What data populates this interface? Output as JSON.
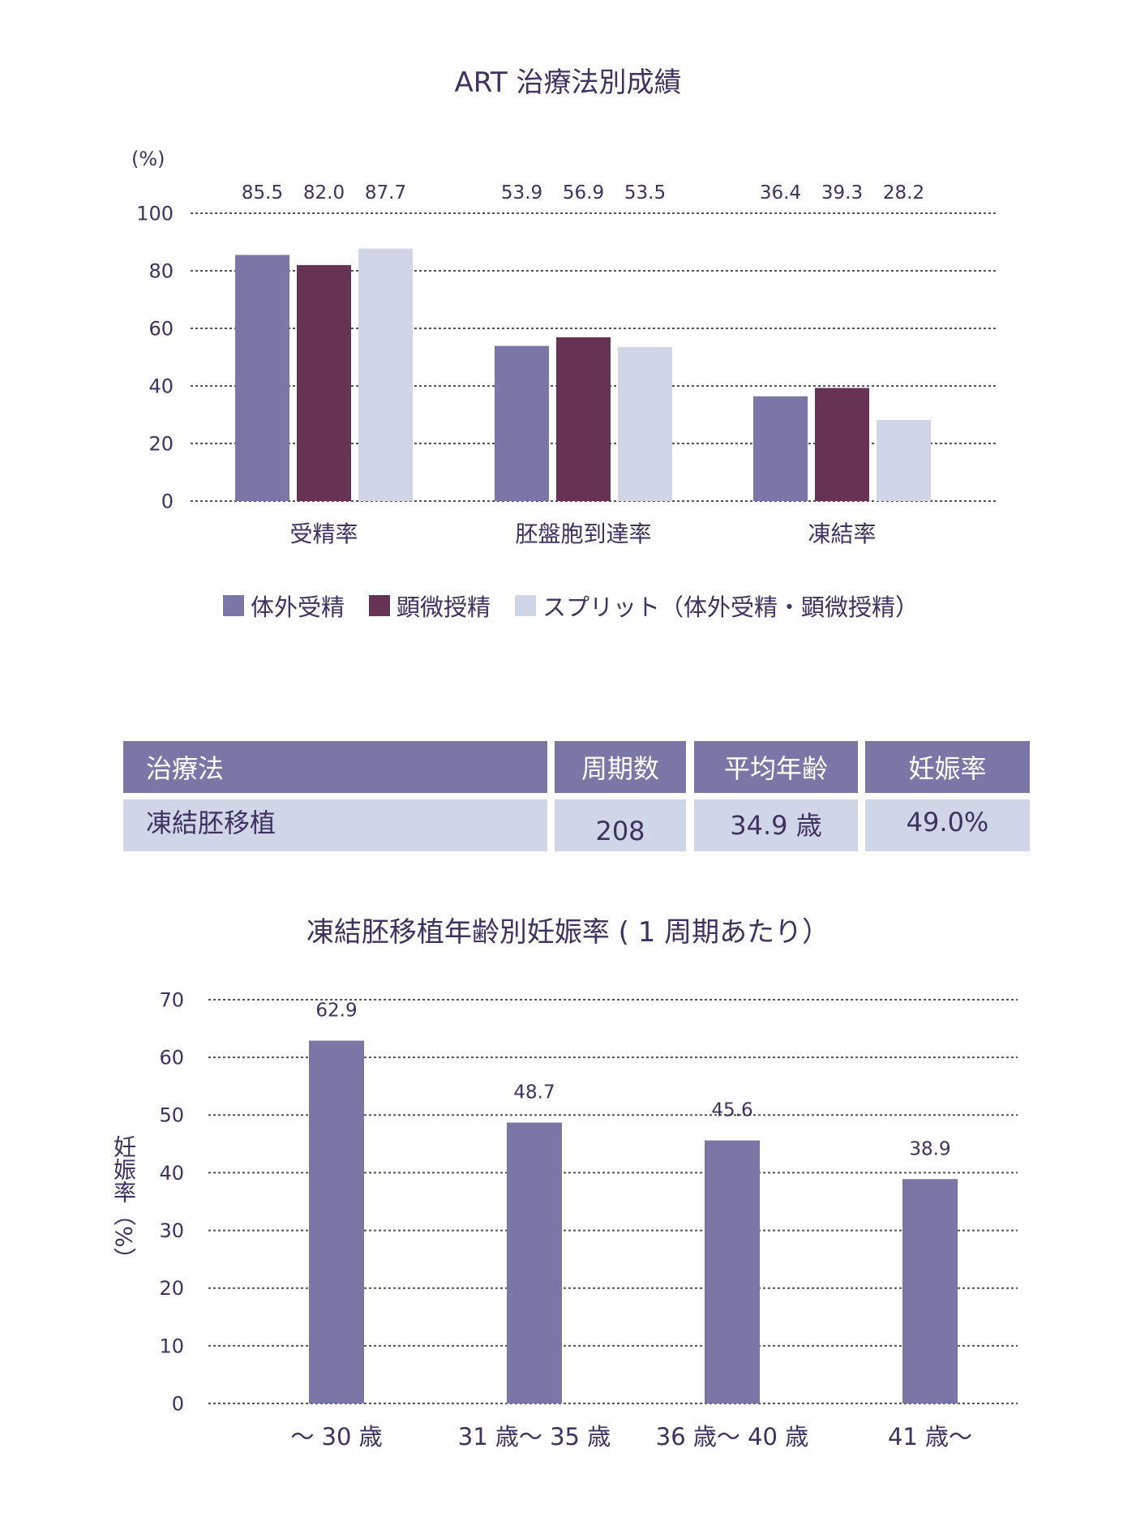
{
  "colors": {
    "series1": "#7a76a6",
    "series2": "#663355",
    "series3": "#d0d6e8",
    "text": "#3d3260",
    "grid": "#555555"
  },
  "chart_data": [
    {
      "type": "bar",
      "title": "ART 治療法別成績",
      "ylabel": "(%)",
      "xlabel": "",
      "ylim": [
        0,
        100
      ],
      "yticks": [
        0,
        20,
        40,
        60,
        80,
        100
      ],
      "grid": true,
      "categories": [
        "受精率",
        "胚盤胞到達率",
        "凍結率"
      ],
      "series": [
        {
          "name": "体外受精",
          "values": [
            85.5,
            53.9,
            36.4
          ]
        },
        {
          "name": "顕微授精",
          "values": [
            82.0,
            56.9,
            39.3
          ]
        },
        {
          "name": "スプリット（体外受精・顕微授精）",
          "values": [
            87.7,
            53.5,
            28.2
          ]
        }
      ],
      "value_labels": [
        [
          "85.5",
          "53.9",
          "36.4"
        ],
        [
          "82.0",
          "56.9",
          "39.3"
        ],
        [
          "87.7",
          "53.5",
          "28.2"
        ]
      ],
      "legend": "bottom"
    },
    {
      "type": "bar",
      "title": "凍結胚移植年齢別妊娠率 ( 1 周期あたり）",
      "ylabel": "妊娠率（%）",
      "xlabel": "",
      "ylim": [
        0,
        70
      ],
      "yticks": [
        0,
        10,
        20,
        30,
        40,
        50,
        60,
        70
      ],
      "grid": true,
      "categories": [
        "～ 30 歳",
        "31 歳～ 35 歳",
        "36 歳～ 40 歳",
        "41 歳～"
      ],
      "values": [
        62.9,
        48.7,
        45.6,
        38.9
      ],
      "value_labels": [
        "62.9",
        "48.7",
        "45.6",
        "38.9"
      ]
    }
  ],
  "table": {
    "headers": [
      "治療法",
      "周期数",
      "平均年齢",
      "妊娠率"
    ],
    "rows": [
      [
        "凍結胚移植",
        "208",
        "34.9 歳",
        "49.0%"
      ]
    ]
  }
}
